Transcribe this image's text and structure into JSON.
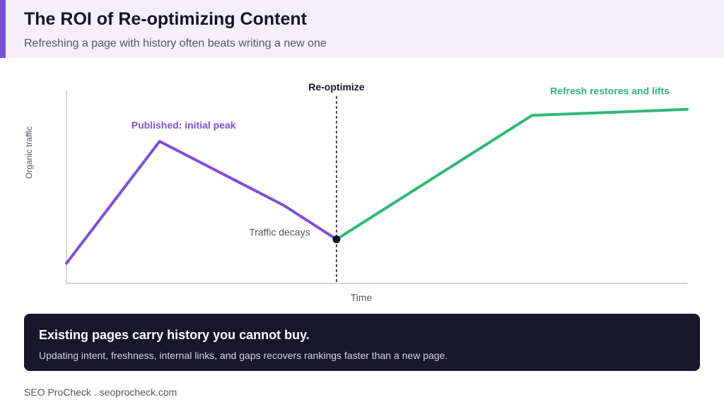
{
  "header": {
    "title": "The ROI of Re-optimizing Content",
    "subtitle": "Refreshing a page with history often beats writing a new one"
  },
  "chart_data": {
    "type": "line",
    "xlabel": "Time",
    "ylabel": "Organic traffic",
    "grid": false,
    "legend": "none",
    "series": [
      {
        "segment": "before",
        "color": "#7b4fdc",
        "x": [
          0,
          1.5,
          3.5,
          4.35
        ],
        "y": [
          1,
          7.1,
          3.9,
          2.2
        ]
      },
      {
        "segment": "after",
        "color": "#2dba73",
        "x": [
          4.35,
          7.5,
          10
        ],
        "y": [
          2.2,
          8.4,
          8.7
        ]
      }
    ],
    "marker": {
      "label": "Re-optimize",
      "x": 4.35,
      "color": "#141428"
    },
    "annotations": [
      {
        "text": "Published: initial peak",
        "color": "#7b4fdc",
        "bold": true,
        "x": 1.5,
        "y": 7.1
      },
      {
        "text": "Traffic decays",
        "color": "#555563",
        "bold": false,
        "x": 3.0,
        "y": 2.6
      },
      {
        "text": "Refresh restores and lifts",
        "color": "#2dba73",
        "bold": true,
        "x": 7.5,
        "y": 8.4
      }
    ],
    "xlim": [
      0,
      10
    ],
    "ylim": [
      0,
      10
    ],
    "axis_color": "#c8c8d0"
  },
  "callout": {
    "title": "Existing pages carry history you cannot buy.",
    "body": "Updating intent, freshness, internal links, and gaps recovers rankings faster than a new page."
  },
  "footer": {
    "text": "SEO ProCheck . seoprocheck.com"
  }
}
